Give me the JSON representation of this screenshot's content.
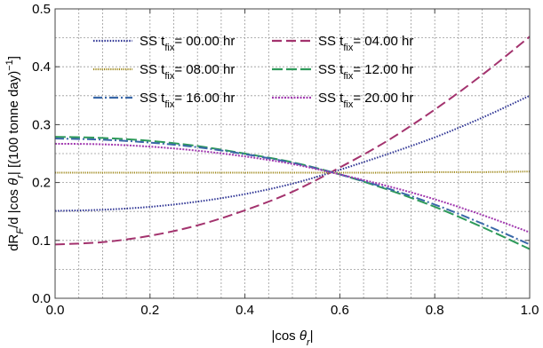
{
  "chart_data": {
    "type": "line",
    "xlabel": "|cos θr|",
    "ylabel": "dRF/d |cos θr|   [(100 tonne day)⁻¹]",
    "xlim": [
      0.0,
      1.0
    ],
    "ylim": [
      0.0,
      0.5
    ],
    "x_ticks": [
      "0.0",
      "0.2",
      "0.4",
      "0.6",
      "0.8",
      "1.0"
    ],
    "y_ticks": [
      "0.0",
      "0.1",
      "0.2",
      "0.3",
      "0.4",
      "0.5"
    ],
    "grid": true,
    "legend_position": "top",
    "x": [
      0.0,
      0.1,
      0.2,
      0.3,
      0.4,
      0.5,
      0.6,
      0.7,
      0.8,
      0.9,
      1.0
    ],
    "series": [
      {
        "name": "SS t_fix= 00.00 hr",
        "label_prefix": "SS t",
        "label_sub": "fix",
        "label_suffix": "= 00.00 hr",
        "color": "#2e3494",
        "dash": "1.5 1.6",
        "values": [
          0.151,
          0.153,
          0.158,
          0.167,
          0.18,
          0.198,
          0.222,
          0.249,
          0.278,
          0.312,
          0.35
        ]
      },
      {
        "name": "SS t_fix= 04.00 hr",
        "label_prefix": "SS t",
        "label_sub": "fix",
        "label_suffix": "= 04.00 hr",
        "color": "#a3336e",
        "dash": "11 5",
        "values": [
          0.093,
          0.097,
          0.108,
          0.126,
          0.152,
          0.184,
          0.226,
          0.272,
          0.326,
          0.386,
          0.452
        ]
      },
      {
        "name": "SS t_fix= 08.00 hr",
        "label_prefix": "SS t",
        "label_sub": "fix",
        "label_suffix": "= 08.00 hr",
        "color": "#a08a1e",
        "dash": "1.2 1.2",
        "values": [
          0.217,
          0.217,
          0.217,
          0.217,
          0.217,
          0.217,
          0.217,
          0.217,
          0.218,
          0.218,
          0.219
        ]
      },
      {
        "name": "SS t_fix= 12.00 hr",
        "label_prefix": "SS t",
        "label_sub": "fix",
        "label_suffix": "= 12.00 hr",
        "color": "#2e9a5a",
        "dash": "12 4",
        "values": [
          0.279,
          0.277,
          0.272,
          0.263,
          0.25,
          0.235,
          0.214,
          0.188,
          0.158,
          0.123,
          0.085
        ]
      },
      {
        "name": "SS t_fix= 16.00 hr",
        "label_prefix": "SS t",
        "label_sub": "fix",
        "label_suffix": "= 16.00 hr",
        "color": "#3a68a8",
        "dash": "10 3 2 3",
        "values": [
          0.276,
          0.274,
          0.269,
          0.261,
          0.249,
          0.234,
          0.214,
          0.19,
          0.162,
          0.129,
          0.093
        ]
      },
      {
        "name": "SS t_fix= 20.00 hr",
        "label_prefix": "SS t",
        "label_sub": "fix",
        "label_suffix": "= 20.00 hr",
        "color": "#a23ab0",
        "dash": "2 1.5",
        "values": [
          0.267,
          0.266,
          0.262,
          0.255,
          0.245,
          0.232,
          0.214,
          0.194,
          0.171,
          0.144,
          0.114
        ]
      }
    ]
  }
}
